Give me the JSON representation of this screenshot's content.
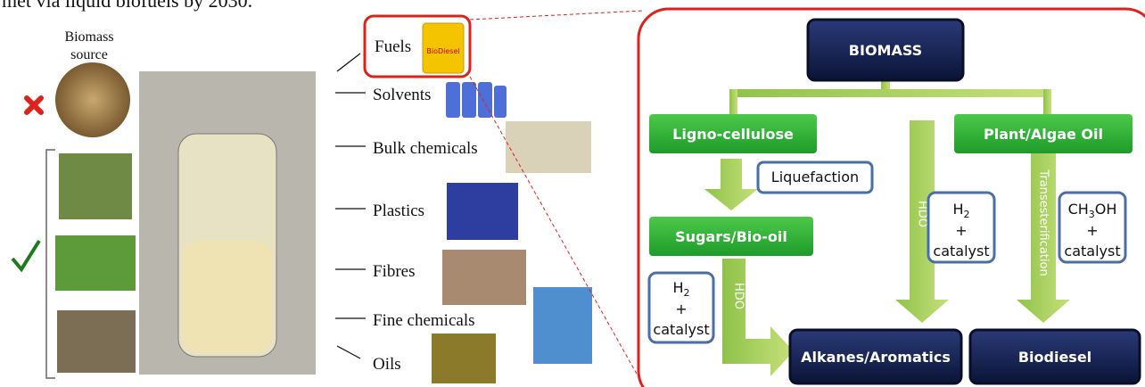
{
  "caption_fragment": "met via liquid biofuels by 2030.",
  "left": {
    "biomass_source": [
      "Biomass",
      "source"
    ]
  },
  "products": {
    "items": [
      "Fuels",
      "Solvents",
      "Bulk chemicals",
      "Plastics",
      "Fibres",
      "Fine chemicals",
      "Oils"
    ],
    "jug_label": "BioDiesel"
  },
  "scheme": {
    "root": "BIOMASS",
    "branches": [
      "Ligno-cellulose",
      "Plant/Algae Oil"
    ],
    "liquefaction": "Liquefaction",
    "intermediate": "Sugars/Bio-oil",
    "hdo_labels": [
      "HDO",
      "HDO"
    ],
    "transesterification": "Transesterification",
    "reagents": [
      {
        "formula": "H",
        "sub": "2",
        "plus": "+",
        "catalyst": "catalyst"
      },
      {
        "formula": "H",
        "sub": "2",
        "plus": "+",
        "catalyst": "catalyst"
      },
      {
        "formula": "CH",
        "sub": "3",
        "formula_end": "OH",
        "plus": "+",
        "catalyst": "catalyst"
      }
    ],
    "outputs": [
      "Alkanes/Aromatics",
      "Biodiesel"
    ]
  }
}
